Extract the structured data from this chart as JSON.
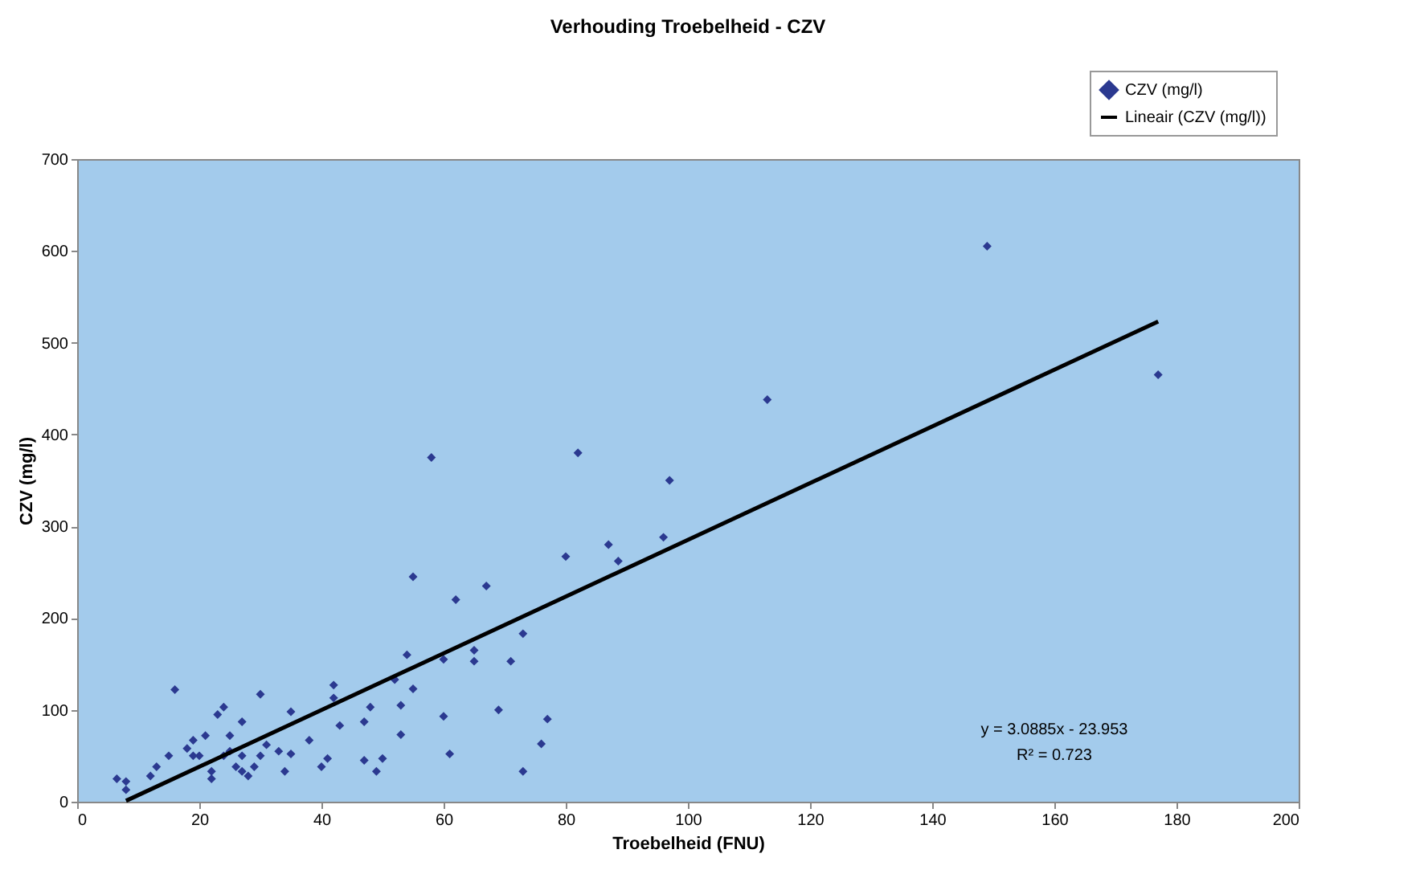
{
  "chart_data": {
    "type": "scatter",
    "title": "Verhouding Troebelheid - CZV",
    "xlabel": "Troebelheid (FNU)",
    "ylabel": "CZV (mg/l)",
    "xlim": [
      0,
      200
    ],
    "xticks": [
      0,
      20,
      40,
      60,
      80,
      100,
      120,
      140,
      160,
      180,
      200
    ],
    "ylim": [
      0,
      700
    ],
    "yticks": [
      0,
      100,
      200,
      300,
      400,
      500,
      600,
      700
    ],
    "grid": false,
    "legend": "top right",
    "annotations": [
      "y = 3.0885x - 23.953",
      "R² = 0.723"
    ],
    "series": [
      {
        "name": "CZV (mg/l)",
        "color": "#2b3990",
        "marker": "diamond",
        "x": [
          149,
          177,
          113,
          58,
          82,
          97,
          96,
          87,
          88.6,
          80,
          55,
          67,
          62,
          73,
          54,
          60,
          65,
          65,
          71,
          52,
          55,
          48,
          53,
          60,
          69,
          77,
          53,
          76,
          61,
          50,
          47,
          49,
          73,
          16,
          30,
          42,
          42,
          24,
          23,
          27,
          35,
          43,
          47,
          38,
          35,
          33,
          41,
          40,
          34,
          21,
          19,
          25,
          18,
          15,
          13,
          12,
          6.5,
          8,
          8,
          22,
          22,
          24,
          26,
          27,
          28,
          29,
          30,
          31,
          20,
          19,
          27,
          25
        ],
        "values": [
          605,
          465,
          438,
          375,
          380,
          350,
          288,
          280,
          262,
          267,
          245,
          235,
          220,
          183,
          160,
          155,
          165,
          153,
          153,
          133,
          123,
          103,
          105,
          93,
          100,
          90,
          73,
          63,
          52,
          47,
          45,
          33,
          33,
          122,
          117,
          127,
          113,
          103,
          95,
          87,
          98,
          83,
          87,
          67,
          52,
          55,
          47,
          38,
          33,
          72,
          67,
          72,
          58,
          50,
          38,
          28,
          25,
          22,
          13,
          25,
          33,
          50,
          38,
          33,
          28,
          38,
          50,
          62,
          50,
          50,
          50,
          55
        ]
      },
      {
        "name": "Lineair (CZV (mg/l))",
        "color": "#000000",
        "type": "line",
        "line_style": "solid",
        "x": [
          8,
          177
        ],
        "values": [
          1,
          523
        ]
      }
    ]
  }
}
